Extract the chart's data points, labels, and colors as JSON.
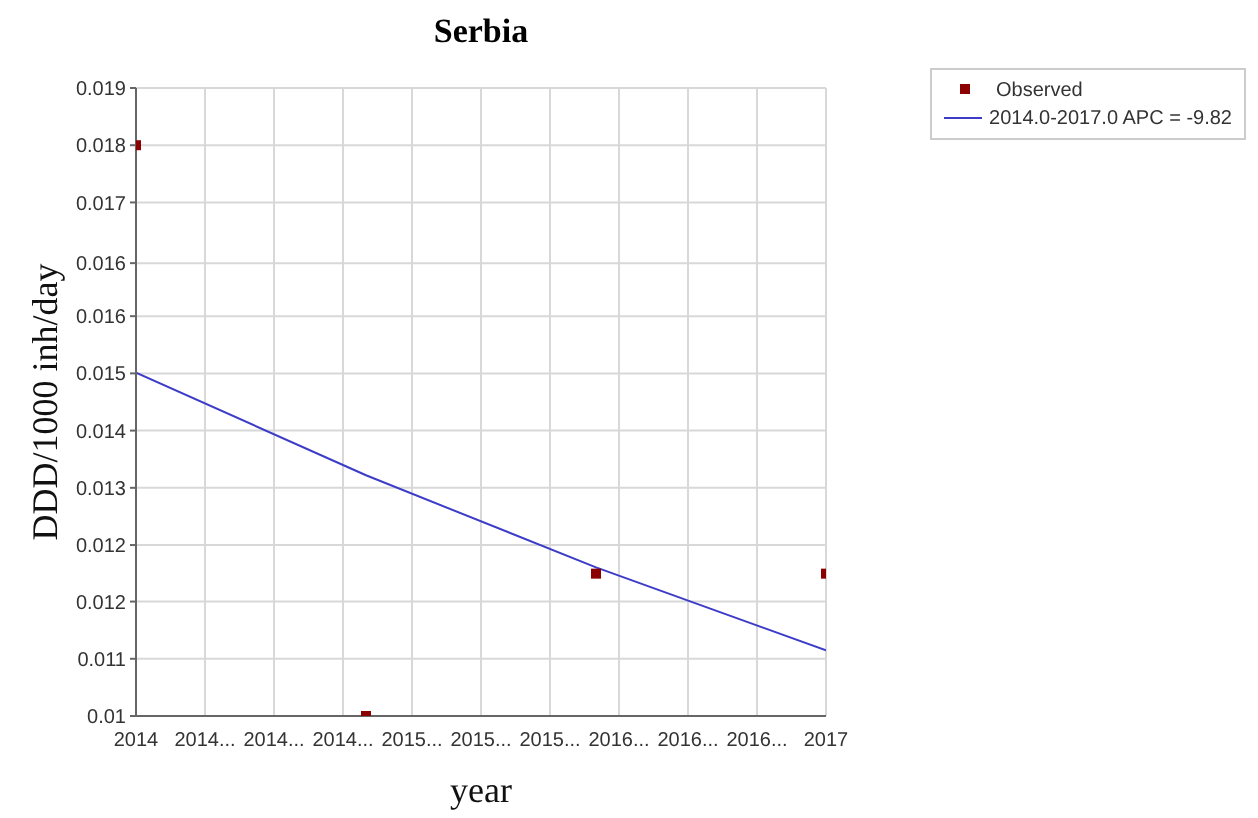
{
  "chart_data": {
    "type": "scatter",
    "title": "Serbia",
    "xlabel": "year",
    "ylabel": "DDD/1000 inh/day",
    "xlim": [
      2014,
      2017
    ],
    "xticks": [
      2014,
      {
        "value": 2014.3,
        "label": "2014..."
      },
      {
        "value": 2014.6,
        "label": "2014..."
      },
      {
        "value": 2014.9,
        "label": "2014..."
      },
      {
        "value": 2015.2,
        "label": "2015..."
      },
      {
        "value": 2015.5,
        "label": "2015..."
      },
      {
        "value": 2015.8,
        "label": "2015..."
      },
      {
        "value": 2016.1,
        "label": "2016..."
      },
      {
        "value": 2016.4,
        "label": "2016..."
      },
      {
        "value": 2016.7,
        "label": "2016..."
      },
      2017
    ],
    "ylim": [
      0.01,
      0.019
    ],
    "yticks": [
      0.01,
      {
        "value": 0.01082,
        "label": "0.011"
      },
      {
        "value": 0.01164,
        "label": "0.012"
      },
      {
        "value": 0.01245,
        "label": "0.012"
      },
      {
        "value": 0.01327,
        "label": "0.013"
      },
      {
        "value": 0.01409,
        "label": "0.014"
      },
      {
        "value": 0.01491,
        "label": "0.015"
      },
      {
        "value": 0.01573,
        "label": "0.016"
      },
      {
        "value": 0.01649,
        "label": "0.016"
      },
      {
        "value": 0.01736,
        "label": "0.017"
      },
      {
        "value": 0.01818,
        "label": "0.018"
      },
      0.019
    ],
    "grid": true,
    "legend": "top right",
    "series": [
      {
        "name": "Observed",
        "marker": "square",
        "color": "#8b0000",
        "x": [
          2014,
          2015,
          2016,
          2017
        ],
        "values": [
          0.01818,
          0.01,
          0.01204,
          0.01204
        ]
      },
      {
        "name": "2014.0-2017.0 APC = -9.82",
        "type": "line",
        "marker": "none",
        "color": "#3c3cc8",
        "x": [
          2014,
          2015,
          2016,
          2017
        ],
        "values": [
          0.01492,
          0.01345,
          0.01213,
          0.01094
        ]
      }
    ]
  }
}
